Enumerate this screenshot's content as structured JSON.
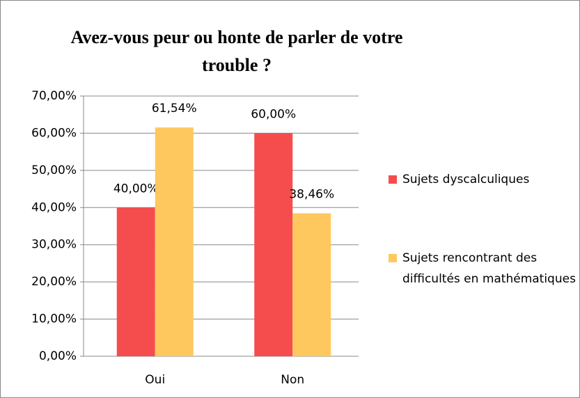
{
  "chart_data": {
    "type": "bar",
    "title": "Avez-vous peur ou honte de parler de votre trouble ?",
    "categories": [
      "Oui",
      "Non"
    ],
    "series": [
      {
        "name": "Sujets dyscalculiques",
        "color": "#f54d4d",
        "values": [
          40,
          60
        ],
        "value_labels": [
          "40,00%",
          "60,00%"
        ]
      },
      {
        "name": "Sujets rencontrant des difficultés en mathématiques",
        "color": "#ffc85f",
        "values": [
          61.54,
          38.46
        ],
        "value_labels": [
          "61,54%",
          "38,46%"
        ]
      }
    ],
    "ylim": [
      0,
      70
    ],
    "yticks": [
      {
        "value": 0,
        "label": "0,00%"
      },
      {
        "value": 10,
        "label": "10,00%"
      },
      {
        "value": 20,
        "label": "20,00%"
      },
      {
        "value": 30,
        "label": "30,00%"
      },
      {
        "value": 40,
        "label": "40,00%"
      },
      {
        "value": 50,
        "label": "50,00%"
      },
      {
        "value": 60,
        "label": "60,00%"
      },
      {
        "value": 70,
        "label": "70,00%"
      }
    ],
    "grid": true,
    "legend": "right"
  }
}
